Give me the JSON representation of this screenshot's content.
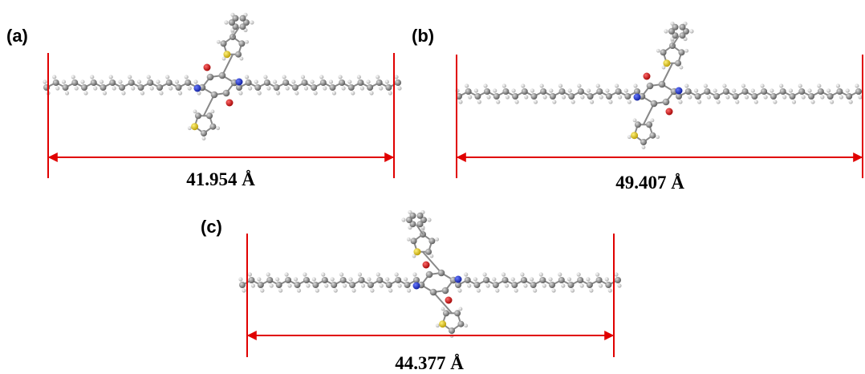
{
  "panels": [
    {
      "label": "(a)",
      "length": "41.954 Å"
    },
    {
      "label": "(b)",
      "length": "49.407 Å"
    },
    {
      "label": "(c)",
      "length": "44.377 Å"
    }
  ]
}
